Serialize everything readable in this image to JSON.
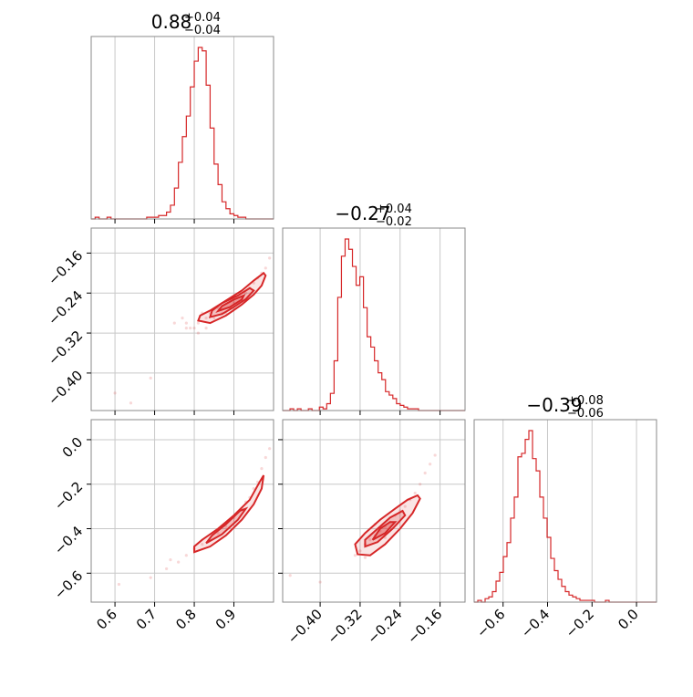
{
  "chart_data": {
    "type": "corner",
    "accent_color": "#d62728",
    "grid": true,
    "params": [
      {
        "title": "0.88",
        "err_plus": "+0.04",
        "err_minus": "−0.04",
        "range": [
          0.54,
          1.0
        ]
      },
      {
        "title": "−0.27",
        "err_plus": "+0.04",
        "err_minus": "−0.02",
        "range": [
          -0.475,
          -0.11
        ]
      },
      {
        "title": "−0.39",
        "err_plus": "+0.08",
        "err_minus": "−0.06",
        "range": [
          -0.73,
          0.09
        ]
      }
    ],
    "ticks": [
      {
        "values": [
          0.6,
          0.7,
          0.8,
          0.9
        ],
        "labels": [
          "0.6",
          "0.7",
          "0.8",
          "0.9"
        ]
      },
      {
        "values": [
          -0.4,
          -0.32,
          -0.24,
          -0.16
        ],
        "labels": [
          "−0.40",
          "−0.32",
          "−0.24",
          "−0.16"
        ]
      },
      {
        "values": [
          -0.6,
          -0.4,
          -0.2,
          0.0
        ],
        "labels": [
          "−0.6",
          "−0.4",
          "−0.2",
          "0.0"
        ]
      }
    ],
    "histograms": [
      {
        "param": 0,
        "bin_start": 0.54,
        "bin_width": 0.01,
        "counts": [
          0,
          0.01,
          0,
          0,
          0.01,
          0,
          0,
          0,
          0,
          0,
          0,
          0,
          0,
          0,
          0.01,
          0.01,
          0.01,
          0.02,
          0.02,
          0.04,
          0.08,
          0.18,
          0.33,
          0.48,
          0.6,
          0.77,
          0.92,
          1.0,
          0.98,
          0.78,
          0.53,
          0.32,
          0.2,
          0.1,
          0.06,
          0.03,
          0.02,
          0.01,
          0.01,
          0.0,
          0.0,
          0.0,
          0.0,
          0.0,
          0.0,
          0.0
        ]
      },
      {
        "param": 1,
        "bin_start": -0.475,
        "bin_width": 0.00735,
        "counts": [
          0,
          0,
          0.01,
          0,
          0.01,
          0,
          0,
          0.01,
          0,
          0,
          0.02,
          0.01,
          0.04,
          0.1,
          0.29,
          0.66,
          0.9,
          1.0,
          0.94,
          0.84,
          0.73,
          0.78,
          0.6,
          0.43,
          0.37,
          0.29,
          0.22,
          0.18,
          0.11,
          0.09,
          0.07,
          0.04,
          0.03,
          0.02,
          0.01,
          0.01,
          0.01,
          0,
          0,
          0,
          0,
          0,
          0,
          0,
          0,
          0,
          0,
          0,
          0,
          0
        ]
      },
      {
        "param": 2,
        "bin_start": -0.73,
        "bin_width": 0.0164,
        "counts": [
          0,
          0.01,
          0,
          0.02,
          0.03,
          0.06,
          0.12,
          0.17,
          0.26,
          0.34,
          0.48,
          0.6,
          0.83,
          0.85,
          0.93,
          0.98,
          0.82,
          0.75,
          0.6,
          0.48,
          0.37,
          0.25,
          0.18,
          0.13,
          0.09,
          0.06,
          0.04,
          0.03,
          0.02,
          0.01,
          0.01,
          0.01,
          0.01,
          0,
          0,
          0,
          0.01,
          0,
          0,
          0,
          0,
          0,
          0,
          0,
          0,
          0,
          0,
          0,
          0,
          0
        ]
      }
    ],
    "scatter_panels": [
      {
        "x_param": 0,
        "y_param": 1,
        "points": [
          [
            0.81,
            -0.3
          ],
          [
            0.83,
            -0.29
          ],
          [
            0.85,
            -0.29
          ],
          [
            0.87,
            -0.28
          ],
          [
            0.89,
            -0.27
          ],
          [
            0.91,
            -0.26
          ],
          [
            0.93,
            -0.24
          ],
          [
            0.95,
            -0.22
          ],
          [
            0.97,
            -0.2
          ],
          [
            0.98,
            -0.19
          ],
          [
            0.99,
            -0.17
          ],
          [
            0.8,
            -0.31
          ],
          [
            0.79,
            -0.31
          ],
          [
            0.82,
            -0.28
          ],
          [
            0.84,
            -0.28
          ],
          [
            0.86,
            -0.27
          ],
          [
            0.88,
            -0.28
          ],
          [
            0.9,
            -0.26
          ],
          [
            0.92,
            -0.25
          ],
          [
            0.94,
            -0.23
          ],
          [
            0.96,
            -0.21
          ],
          [
            0.78,
            -0.3
          ],
          [
            0.77,
            -0.29
          ],
          [
            0.75,
            -0.3
          ],
          [
            0.69,
            -0.41
          ],
          [
            0.6,
            -0.44
          ],
          [
            0.64,
            -0.46
          ],
          [
            0.78,
            -0.31
          ],
          [
            0.81,
            -0.32
          ],
          [
            0.83,
            -0.31
          ]
        ],
        "contours": [
          [
            [
              0.81,
              -0.295
            ],
            [
              0.84,
              -0.3
            ],
            [
              0.88,
              -0.285
            ],
            [
              0.92,
              -0.263
            ],
            [
              0.95,
              -0.243
            ],
            [
              0.97,
              -0.225
            ],
            [
              0.98,
              -0.205
            ],
            [
              0.975,
              -0.2
            ],
            [
              0.95,
              -0.215
            ],
            [
              0.92,
              -0.235
            ],
            [
              0.88,
              -0.255
            ],
            [
              0.84,
              -0.275
            ],
            [
              0.815,
              -0.285
            ],
            [
              0.81,
              -0.295
            ]
          ],
          [
            [
              0.84,
              -0.288
            ],
            [
              0.87,
              -0.282
            ],
            [
              0.9,
              -0.268
            ],
            [
              0.93,
              -0.252
            ],
            [
              0.95,
              -0.235
            ],
            [
              0.94,
              -0.23
            ],
            [
              0.91,
              -0.245
            ],
            [
              0.87,
              -0.26
            ],
            [
              0.845,
              -0.275
            ],
            [
              0.84,
              -0.288
            ]
          ],
          [
            [
              0.86,
              -0.276
            ],
            [
              0.89,
              -0.268
            ],
            [
              0.92,
              -0.253
            ],
            [
              0.925,
              -0.245
            ],
            [
              0.9,
              -0.253
            ],
            [
              0.87,
              -0.266
            ],
            [
              0.86,
              -0.276
            ]
          ]
        ]
      },
      {
        "x_param": 0,
        "y_param": 2,
        "points": [
          [
            0.8,
            -0.49
          ],
          [
            0.82,
            -0.47
          ],
          [
            0.84,
            -0.45
          ],
          [
            0.86,
            -0.42
          ],
          [
            0.88,
            -0.39
          ],
          [
            0.9,
            -0.35
          ],
          [
            0.92,
            -0.31
          ],
          [
            0.94,
            -0.26
          ],
          [
            0.96,
            -0.19
          ],
          [
            0.97,
            -0.13
          ],
          [
            0.98,
            -0.08
          ],
          [
            0.99,
            -0.04
          ],
          [
            0.78,
            -0.52
          ],
          [
            0.76,
            -0.55
          ],
          [
            0.73,
            -0.58
          ],
          [
            0.69,
            -0.62
          ],
          [
            0.61,
            -0.65
          ],
          [
            0.74,
            -0.54
          ],
          [
            0.95,
            -0.22
          ],
          [
            0.93,
            -0.28
          ]
        ],
        "contours": [
          [
            [
              0.8,
              -0.505
            ],
            [
              0.84,
              -0.48
            ],
            [
              0.88,
              -0.43
            ],
            [
              0.92,
              -0.36
            ],
            [
              0.95,
              -0.29
            ],
            [
              0.97,
              -0.22
            ],
            [
              0.975,
              -0.16
            ],
            [
              0.965,
              -0.19
            ],
            [
              0.94,
              -0.27
            ],
            [
              0.9,
              -0.34
            ],
            [
              0.86,
              -0.4
            ],
            [
              0.82,
              -0.45
            ],
            [
              0.8,
              -0.48
            ],
            [
              0.8,
              -0.505
            ]
          ],
          [
            [
              0.83,
              -0.465
            ],
            [
              0.87,
              -0.425
            ],
            [
              0.91,
              -0.36
            ],
            [
              0.93,
              -0.31
            ],
            [
              0.915,
              -0.32
            ],
            [
              0.88,
              -0.38
            ],
            [
              0.845,
              -0.43
            ],
            [
              0.83,
              -0.465
            ]
          ]
        ]
      },
      {
        "x_param": 1,
        "y_param": 2,
        "points": [
          [
            -0.32,
            -0.5
          ],
          [
            -0.31,
            -0.47
          ],
          [
            -0.3,
            -0.45
          ],
          [
            -0.29,
            -0.43
          ],
          [
            -0.28,
            -0.41
          ],
          [
            -0.27,
            -0.39
          ],
          [
            -0.26,
            -0.37
          ],
          [
            -0.25,
            -0.34
          ],
          [
            -0.24,
            -0.32
          ],
          [
            -0.23,
            -0.3
          ],
          [
            -0.22,
            -0.27
          ],
          [
            -0.21,
            -0.24
          ],
          [
            -0.2,
            -0.2
          ],
          [
            -0.19,
            -0.15
          ],
          [
            -0.18,
            -0.11
          ],
          [
            -0.17,
            -0.07
          ],
          [
            -0.33,
            -0.52
          ],
          [
            -0.31,
            -0.53
          ],
          [
            -0.29,
            -0.38
          ],
          [
            -0.27,
            -0.44
          ],
          [
            -0.46,
            -0.61
          ],
          [
            -0.4,
            -0.64
          ]
        ],
        "contours": [
          [
            [
              -0.325,
              -0.515
            ],
            [
              -0.3,
              -0.52
            ],
            [
              -0.27,
              -0.47
            ],
            [
              -0.24,
              -0.4
            ],
            [
              -0.215,
              -0.33
            ],
            [
              -0.2,
              -0.265
            ],
            [
              -0.205,
              -0.25
            ],
            [
              -0.225,
              -0.27
            ],
            [
              -0.25,
              -0.31
            ],
            [
              -0.28,
              -0.36
            ],
            [
              -0.31,
              -0.42
            ],
            [
              -0.33,
              -0.47
            ],
            [
              -0.325,
              -0.515
            ]
          ],
          [
            [
              -0.31,
              -0.48
            ],
            [
              -0.285,
              -0.46
            ],
            [
              -0.255,
              -0.4
            ],
            [
              -0.23,
              -0.34
            ],
            [
              -0.235,
              -0.32
            ],
            [
              -0.26,
              -0.35
            ],
            [
              -0.29,
              -0.41
            ],
            [
              -0.31,
              -0.45
            ],
            [
              -0.31,
              -0.48
            ]
          ],
          [
            [
              -0.295,
              -0.45
            ],
            [
              -0.27,
              -0.42
            ],
            [
              -0.25,
              -0.37
            ],
            [
              -0.26,
              -0.37
            ],
            [
              -0.28,
              -0.4
            ],
            [
              -0.295,
              -0.45
            ]
          ]
        ]
      }
    ]
  }
}
